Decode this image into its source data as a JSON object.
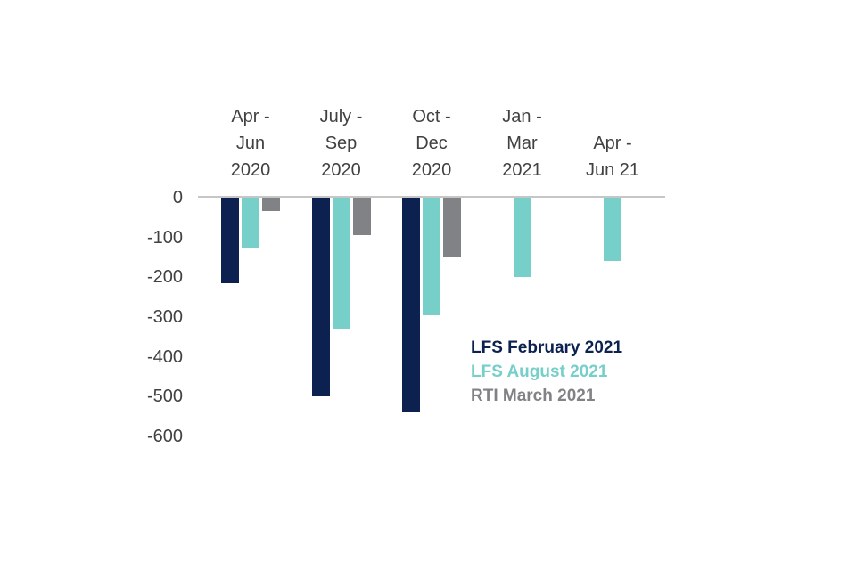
{
  "chart_data": {
    "type": "bar",
    "categories": [
      "Apr -\nJun\n2020",
      "July -\nSep\n2020",
      "Oct -\nDec\n2020",
      "Jan -\nMar\n2021",
      "Apr -\nJun 21"
    ],
    "series": [
      {
        "name": "LFS February 2021",
        "color": "#0c2150",
        "values": [
          -215,
          -500,
          -540,
          null,
          null
        ]
      },
      {
        "name": "LFS August 2021",
        "color": "#76cfc9",
        "values": [
          -125,
          -330,
          -295,
          -200,
          -160
        ]
      },
      {
        "name": "RTI March 2021",
        "color": "#808285",
        "values": [
          -33,
          -95,
          -150,
          null,
          null
        ]
      }
    ],
    "title": "",
    "xlabel": "",
    "ylabel": "",
    "ylim": [
      -600,
      0
    ],
    "yticks": [
      0,
      -100,
      -200,
      -300,
      -400,
      -500,
      -600
    ],
    "grid": false,
    "legend_position": "center-right",
    "axis_text_color": "#414042",
    "zero_line_color": "#c6c6c6"
  }
}
